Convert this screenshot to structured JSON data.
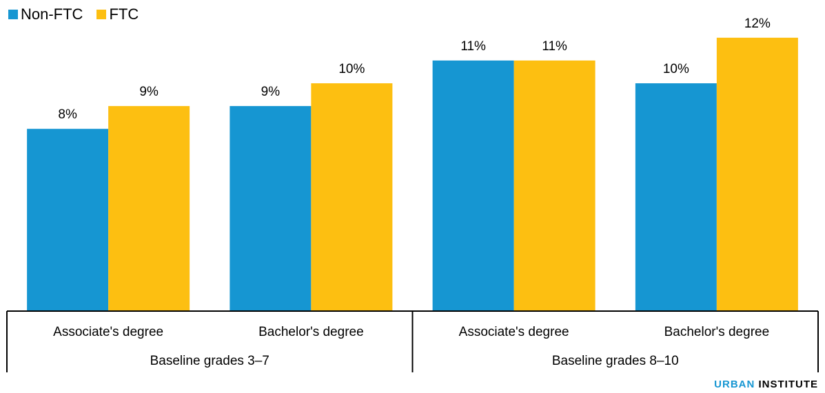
{
  "legend": [
    {
      "label": "Non-FTC",
      "color": "#1696d2"
    },
    {
      "label": "FTC",
      "color": "#fdbf11"
    }
  ],
  "brand": {
    "part1": "URBAN",
    "part2": "INSTITUTE"
  },
  "chart_data": {
    "type": "bar",
    "categories": [
      "Associate's degree",
      "Bachelor's degree",
      "Associate's degree",
      "Bachelor's degree"
    ],
    "groups": [
      {
        "label": "Baseline grades 3–7",
        "categories": [
          0,
          1
        ]
      },
      {
        "label": "Baseline grades 8–10",
        "categories": [
          2,
          3
        ]
      }
    ],
    "series": [
      {
        "name": "Non-FTC",
        "color": "#1696d2",
        "values": [
          8,
          9,
          11,
          10
        ],
        "labels": [
          "8%",
          "9%",
          "11%",
          "10%"
        ]
      },
      {
        "name": "FTC",
        "color": "#fdbf11",
        "values": [
          9,
          10,
          11,
          12
        ],
        "labels": [
          "9%",
          "10%",
          "11%",
          "12%"
        ]
      }
    ],
    "ylim": [
      0,
      12.2
    ],
    "grid": false,
    "legend_position": "top-left"
  }
}
